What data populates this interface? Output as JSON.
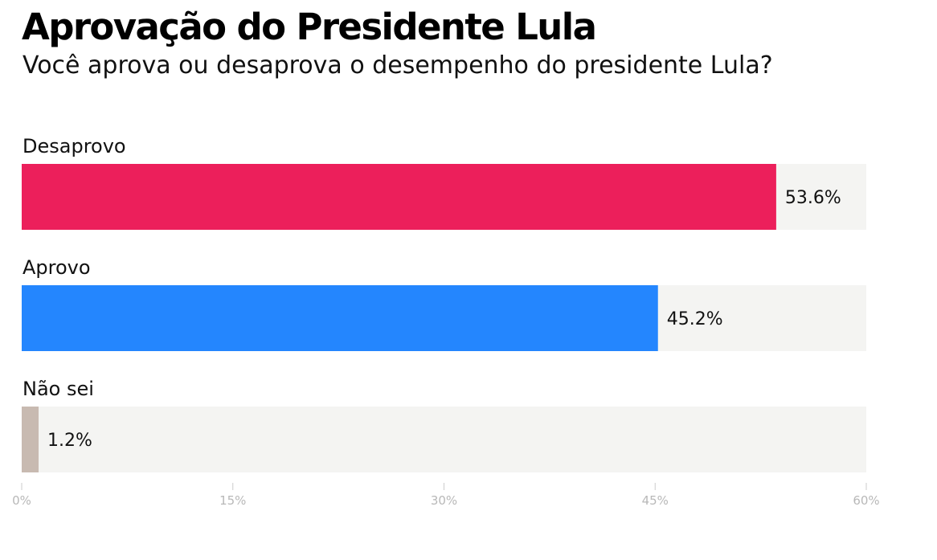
{
  "title": "Aprovação do Presidente Lula",
  "subtitle": "Você aprova ou desaprova o desempenho do presidente Lula?",
  "chart_data": {
    "type": "bar",
    "orientation": "horizontal",
    "categories": [
      "Desaprovo",
      "Aprovo",
      "Não sei"
    ],
    "values": [
      53.6,
      45.2,
      1.2
    ],
    "value_labels": [
      "53.6%",
      "45.2%",
      "1.2%"
    ],
    "colors": [
      "#EC1F5B",
      "#2486FE",
      "#C8BAB1"
    ],
    "track_color": "#F4F4F2",
    "xlim": [
      0,
      60
    ],
    "x_ticks": [
      0,
      15,
      30,
      45,
      60
    ],
    "x_tick_labels": [
      "0%",
      "15%",
      "30%",
      "45%",
      "60%"
    ],
    "grid": false
  }
}
